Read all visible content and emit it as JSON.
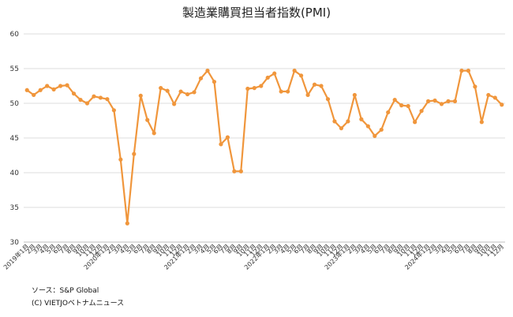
{
  "chart_data": {
    "type": "line",
    "title": "製造業購買担当者指数(PMI)",
    "xlabel": "",
    "ylabel": "",
    "ylim": [
      30,
      60
    ],
    "yticks": [
      30,
      35,
      40,
      45,
      50,
      55,
      60
    ],
    "grid": "horizontal",
    "legend": "none",
    "color": "#F0963C",
    "categories": [
      "2019年1月",
      "2月",
      "3月",
      "4月",
      "5月",
      "6月",
      "7月",
      "8月",
      "9月",
      "10月",
      "11月",
      "12月",
      "2020年1月",
      "2月",
      "3月",
      "4月",
      "5月",
      "6月",
      "7月",
      "8月",
      "9月",
      "10月",
      "11月",
      "12月",
      "2021年1月",
      "2月",
      "3月",
      "4月",
      "5月",
      "6月",
      "7月",
      "8月",
      "9月",
      "10月",
      "11月",
      "12月",
      "2022年1月",
      "2月",
      "3月",
      "4月",
      "5月",
      "6月",
      "7月",
      "8月",
      "9月",
      "10月",
      "11月",
      "12月",
      "2023年1月",
      "2月",
      "3月",
      "4月",
      "5月",
      "6月",
      "7月",
      "8月",
      "9月",
      "10月",
      "11月",
      "12月",
      "2024年1月",
      "2月",
      "3月",
      "4月",
      "5月",
      "6月",
      "7月",
      "8月",
      "9月",
      "10月",
      "11月",
      "12月"
    ],
    "series": [
      {
        "values": [
          51.9,
          51.2,
          51.9,
          52.5,
          52.0,
          52.5,
          52.6,
          51.4,
          50.5,
          50.0,
          51.0,
          50.8,
          50.6,
          49.0,
          41.9,
          32.7,
          42.7,
          51.1,
          47.6,
          45.7,
          52.2,
          51.8,
          49.9,
          51.7,
          51.3,
          51.6,
          53.6,
          54.7,
          53.1,
          44.1,
          45.1,
          40.2,
          40.2,
          52.1,
          52.2,
          52.5,
          53.7,
          54.3,
          51.7,
          51.7,
          54.7,
          54.0,
          51.2,
          52.7,
          52.5,
          50.6,
          47.4,
          46.4,
          47.4,
          51.2,
          47.7,
          46.7,
          45.3,
          46.2,
          48.7,
          50.5,
          49.7,
          49.6,
          47.3,
          48.9,
          50.3,
          50.4,
          49.9,
          50.3,
          50.3,
          54.7,
          54.7,
          52.4,
          47.3,
          51.2,
          50.8,
          49.8
        ]
      }
    ]
  },
  "footer": {
    "source": "ソース：S&P Global",
    "copyright": "(C) VIETJOベトナムニュース"
  }
}
